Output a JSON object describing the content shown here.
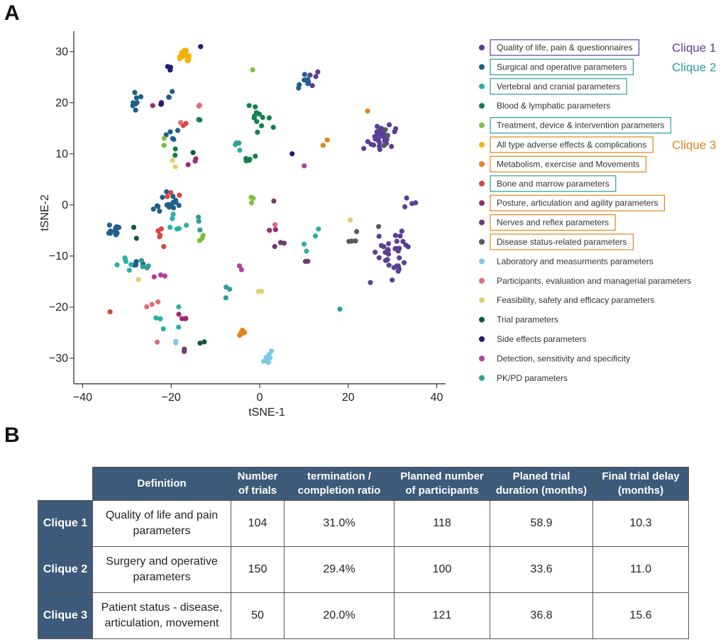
{
  "panels": {
    "a": "A",
    "b": "B"
  },
  "chart_data": {
    "type": "scatter",
    "title": "",
    "xlabel": "tSNE-1",
    "ylabel": "tSNE-2",
    "xlim": [
      -42,
      42
    ],
    "ylim": [
      -35,
      34
    ],
    "xticks": [
      -40,
      -20,
      0,
      20,
      40
    ],
    "yticks": [
      -30,
      -20,
      -10,
      0,
      10,
      20,
      30
    ],
    "grid": false,
    "legend_position": "right",
    "series": [
      {
        "name": "Quality of life, pain & questionnaires",
        "color": "#5a3f94",
        "centers": [
          [
            27,
            13,
            30,
            4.5
          ],
          [
            30,
            -10,
            34,
            6
          ],
          [
            12,
            25,
            6,
            2
          ],
          [
            34,
            1,
            4,
            3
          ]
        ]
      },
      {
        "name": "Surgical and operative parameters",
        "color": "#1f5f8b",
        "centers": [
          [
            -33,
            -5,
            14,
            2
          ],
          [
            -21,
            0,
            16,
            4
          ],
          [
            -28,
            20,
            8,
            3
          ],
          [
            -20,
            14,
            5,
            3
          ],
          [
            10,
            24,
            6,
            2
          ],
          [
            -28,
            -12,
            4,
            3
          ],
          [
            -20,
            22,
            3,
            2
          ]
        ]
      },
      {
        "name": "Vertebral and cranial parameters",
        "color": "#2ab0a8",
        "centers": [
          [
            -18,
            -3,
            6,
            4
          ],
          [
            -30,
            -12,
            6,
            3
          ],
          [
            -20,
            -22,
            5,
            4
          ],
          [
            -5,
            11,
            2,
            1
          ],
          [
            10,
            -8,
            2,
            2
          ],
          [
            13,
            -5,
            2,
            2
          ]
        ]
      },
      {
        "name": "Blood & lymphatic parameters",
        "color": "#12804f",
        "centers": [
          [
            0,
            17,
            12,
            4
          ],
          [
            -3,
            9,
            5,
            3
          ],
          [
            -18,
            10,
            2,
            2
          ],
          [
            -14,
            17,
            2,
            2
          ]
        ]
      },
      {
        "name": "Treatment, device & intervention parameters",
        "color": "#7dbe42",
        "centers": [
          [
            -2,
            1,
            3,
            2
          ],
          [
            -14,
            -8,
            3,
            4
          ],
          [
            -21,
            14,
            2,
            3
          ],
          [
            -2,
            27,
            1,
            1
          ]
        ]
      },
      {
        "name": "All type adverse effects & complications",
        "color": "#f2b300",
        "centers": [
          [
            -17,
            29,
            16,
            2
          ]
        ]
      },
      {
        "name": "Metabolism, exercise and Movements",
        "color": "#e5821a",
        "centers": [
          [
            -4,
            -25,
            8,
            1
          ],
          [
            15,
            12,
            2,
            3
          ],
          [
            24,
            18,
            1,
            1
          ]
        ]
      },
      {
        "name": "Bone and marrow parameters",
        "color": "#d9473f",
        "centers": [
          [
            -23,
            -6,
            5,
            4
          ],
          [
            -20,
            3,
            3,
            3
          ],
          [
            -34,
            -21,
            1,
            1
          ],
          [
            -16,
            15,
            2,
            3
          ]
        ]
      },
      {
        "name": "Posture, articulation and agility parameters",
        "color": "#9b2a6f",
        "centers": [
          [
            -17,
            -22,
            4,
            3
          ],
          [
            -15,
            8,
            3,
            3
          ],
          [
            2,
            -5,
            2,
            2
          ],
          [
            -23,
            19,
            2,
            2
          ]
        ]
      },
      {
        "name": "Nerves and reflex parameters",
        "color": "#6a3c6e",
        "centers": [
          [
            5,
            -8,
            3,
            2
          ],
          [
            -17,
            -28,
            2,
            1
          ],
          [
            3,
            1,
            1,
            1
          ],
          [
            11,
            -10,
            2,
            2
          ]
        ]
      },
      {
        "name": "Disease status-related parameters",
        "color": "#555a5e",
        "centers": [
          [
            22,
            -7,
            4,
            3
          ],
          [
            28,
            13,
            3,
            2
          ],
          [
            27,
            -4,
            1,
            1
          ]
        ]
      },
      {
        "name": "Laboratory and measurments parameters",
        "color": "#7ec8e8",
        "centers": [
          [
            2,
            -30,
            9,
            2
          ],
          [
            -19,
            -27,
            2,
            1
          ]
        ]
      },
      {
        "name": "Participants, evaluation and managerial parameters",
        "color": "#e06a78",
        "centers": [
          [
            -24,
            -19,
            3,
            3
          ],
          [
            -13,
            19,
            2,
            2
          ],
          [
            -18,
            16,
            1,
            1
          ],
          [
            3,
            -4,
            1,
            1
          ],
          [
            -23,
            -27,
            1,
            1
          ]
        ]
      },
      {
        "name": "Feasibility, safety and efficacy parameters",
        "color": "#e3cd70",
        "centers": [
          [
            0,
            -17,
            3,
            1
          ],
          [
            -20,
            8,
            2,
            2
          ],
          [
            20,
            -3,
            1,
            1
          ],
          [
            -27,
            -15,
            1,
            1
          ]
        ]
      },
      {
        "name": "Trial parameters",
        "color": "#0e5b34",
        "centers": [
          [
            -13,
            -27,
            2,
            1
          ],
          [
            -29,
            -6,
            2,
            2
          ],
          [
            -15,
            10,
            1,
            1
          ]
        ]
      },
      {
        "name": "Side effects parameters",
        "color": "#241a78",
        "centers": [
          [
            -21,
            27,
            3,
            2
          ],
          [
            -22,
            20,
            2,
            1
          ],
          [
            7,
            10,
            1,
            1
          ],
          [
            -14,
            31,
            1,
            1
          ]
        ]
      },
      {
        "name": "Detection, sensitivity and specificity",
        "color": "#b03fa0",
        "centers": [
          [
            -23,
            -14,
            3,
            2
          ],
          [
            -5,
            -12,
            2,
            2
          ],
          [
            10,
            8,
            1,
            1
          ]
        ]
      },
      {
        "name": "PK/PD parameters",
        "color": "#2e9e98",
        "centers": [
          [
            -26,
            -12,
            4,
            2
          ],
          [
            -7,
            -17,
            3,
            2
          ],
          [
            18,
            -21,
            1,
            1
          ],
          [
            -13,
            -3,
            3,
            3
          ],
          [
            -5,
            12,
            2,
            1
          ]
        ]
      }
    ],
    "cliques": [
      {
        "name": "Clique 1",
        "color": "#5a3f94",
        "members": [
          0
        ]
      },
      {
        "name": "Clique 2",
        "color": "#2a9d97",
        "members": [
          1,
          2,
          4,
          7
        ]
      },
      {
        "name": "Clique 3",
        "color": "#e5821a",
        "members": [
          5,
          6,
          8,
          9,
          10
        ]
      }
    ]
  },
  "table": {
    "headers": [
      "Definition",
      "Number of trials",
      "termination / completion ratio",
      "Planned number of participants",
      "Planed trial duration (months)",
      "Final trial delay (months)"
    ],
    "rows": [
      {
        "label": "Clique 1",
        "definition": "Quality of life and pain parameters",
        "trials": "104",
        "ratio": "31.0%",
        "participants": "118",
        "duration": "58.9",
        "delay": "10.3"
      },
      {
        "label": "Clique 2",
        "definition": "Surgery and operative parameters",
        "trials": "150",
        "ratio": "29.4%",
        "participants": "100",
        "duration": "33.6",
        "delay": "11.0"
      },
      {
        "label": "Clique 3",
        "definition": "Patient status - disease, articulation, movement",
        "trials": "50",
        "ratio": "20.0%",
        "participants": "121",
        "duration": "36.8",
        "delay": "15.6"
      }
    ]
  }
}
